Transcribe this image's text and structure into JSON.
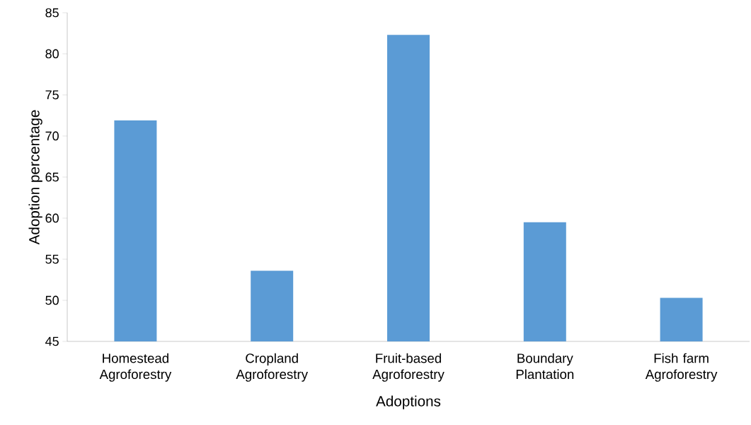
{
  "chart_data": {
    "type": "bar",
    "xlabel": "Adoptions",
    "ylabel": "Adoption percentage",
    "categories": [
      "Homestead Agroforestry",
      "Cropland Agroforestry",
      "Fruit-based Agroforestry",
      "Boundary Plantation",
      "Fish farm Agroforestry"
    ],
    "values": [
      71.9,
      53.6,
      82.3,
      59.5,
      50.3
    ],
    "color": "#5b9bd5",
    "ylim": [
      45,
      85
    ],
    "yticks": [
      45,
      50,
      55,
      60,
      65,
      70,
      75,
      80,
      85
    ],
    "grid": false
  }
}
